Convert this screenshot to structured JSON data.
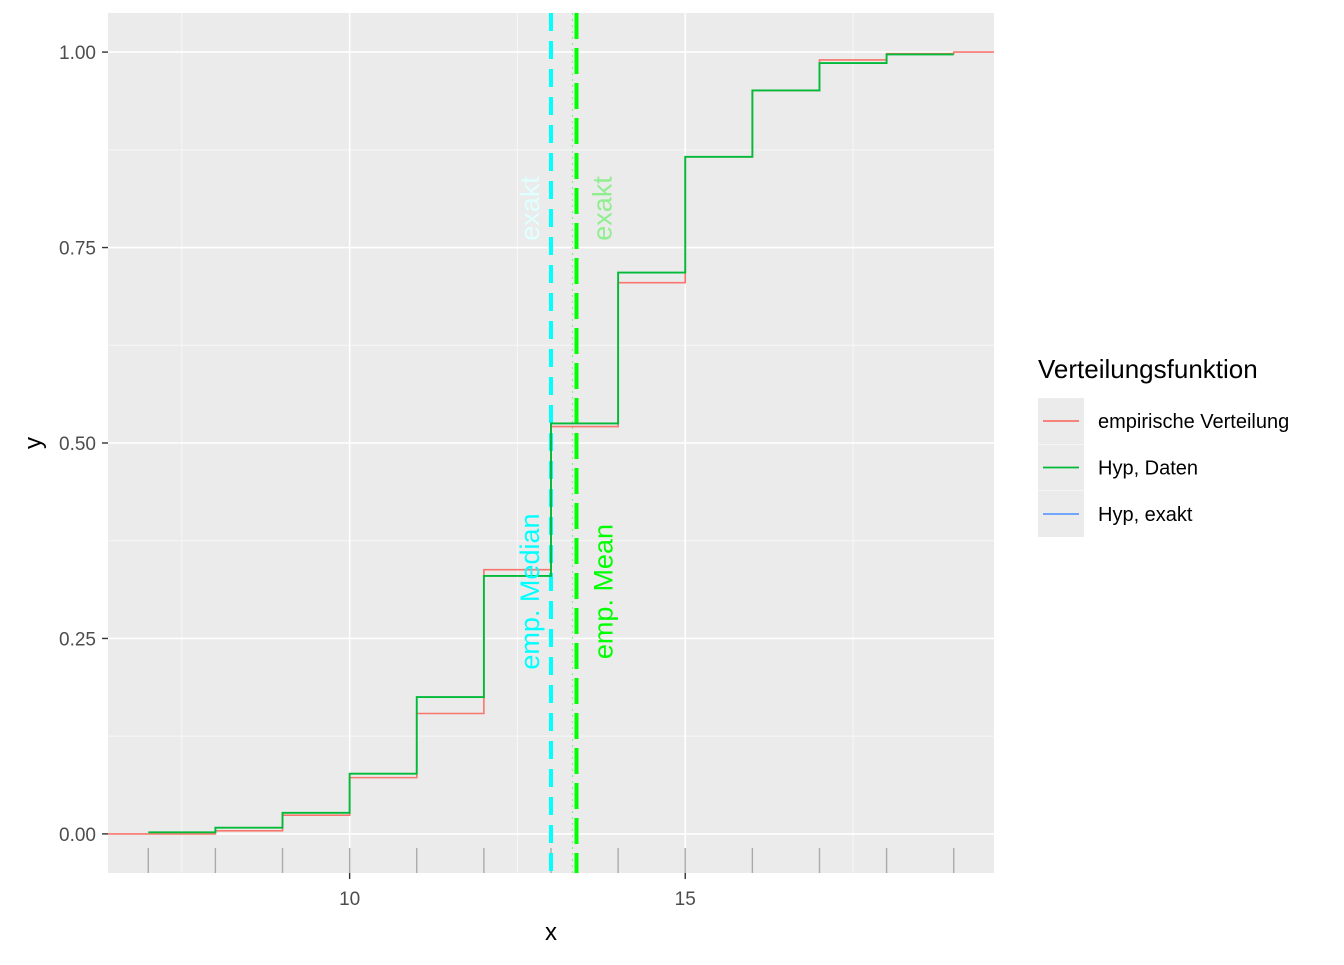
{
  "chart_data": {
    "type": "line",
    "step": true,
    "xlabel": "x",
    "ylabel": "y",
    "xlim": [
      6.4,
      19.6
    ],
    "ylim": [
      -0.05,
      1.05
    ],
    "x_ticks": [
      10,
      15
    ],
    "y_ticks": [
      0.0,
      0.25,
      0.5,
      0.75,
      1.0
    ],
    "x_tick_labels": [
      "10",
      "15"
    ],
    "y_tick_labels": [
      "0.00",
      "0.25",
      "0.50",
      "0.75",
      "1.00"
    ],
    "grid": true,
    "rug_x": [
      7,
      8,
      9,
      10,
      11,
      12,
      13,
      14,
      15,
      16,
      17,
      18,
      19
    ],
    "legend": {
      "title": "Verteilungsfunktion",
      "position": "right",
      "entries": [
        {
          "label": "empirische Verteilung",
          "color": "#F8766D"
        },
        {
          "label": "Hyp, Daten",
          "color": "#00BA38"
        },
        {
          "label": "Hyp, exakt",
          "color": "#619CFF"
        }
      ]
    },
    "series": [
      {
        "name": "empirische Verteilung",
        "color": "#F8766D",
        "x": [
          6.4,
          8,
          9,
          10,
          11,
          12,
          13,
          14,
          15,
          16,
          17,
          18,
          19,
          19.6
        ],
        "y": [
          0.0,
          0.004,
          0.024,
          0.072,
          0.154,
          0.338,
          0.521,
          0.705,
          0.866,
          0.951,
          0.99,
          0.998,
          1.0,
          1.0
        ]
      },
      {
        "name": "Hyp, Daten",
        "color": "#00BA38",
        "x": [
          7,
          8,
          9,
          10,
          11,
          12,
          13,
          14,
          15,
          16,
          17,
          18,
          19
        ],
        "y": [
          0.002,
          0.008,
          0.027,
          0.077,
          0.175,
          0.33,
          0.525,
          0.718,
          0.866,
          0.951,
          0.986,
          0.997,
          0.997
        ]
      },
      {
        "name": "Hyp, exakt",
        "color": "#619CFF",
        "x": [],
        "y": []
      }
    ],
    "annotations": {
      "median_emp": {
        "x": 13.0,
        "label": "emp. Median",
        "color": "#00FFFF",
        "label_y": 0.31
      },
      "median_exakt": {
        "x": 13.0,
        "label": "exakt",
        "color": "#E0FFFF",
        "label_y": 0.8
      },
      "mean_emp": {
        "x": 13.35,
        "label": "emp. Mean",
        "color": "#00FF00",
        "label_y": 0.31
      },
      "mean_exakt": {
        "x": 13.35,
        "label": "exakt",
        "color": "#90EE90",
        "label_y": 0.8
      }
    }
  }
}
